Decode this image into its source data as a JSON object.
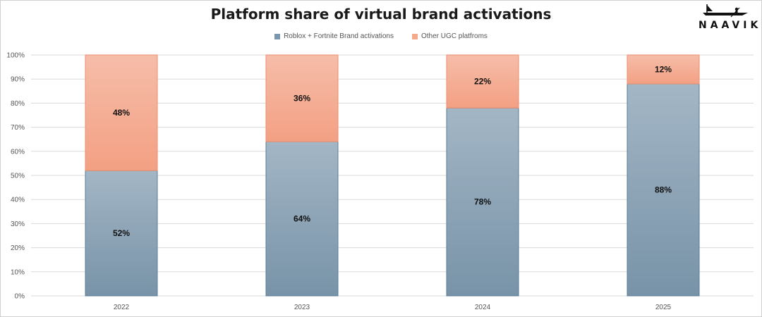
{
  "chart_data": {
    "type": "bar",
    "stacked": true,
    "title": "Platform share of virtual brand activations",
    "categories": [
      "2022",
      "2023",
      "2024",
      "2025"
    ],
    "series": [
      {
        "name": "Roblox + Fortnite Brand activations",
        "values": [
          52,
          64,
          78,
          88
        ],
        "labels": [
          "52%",
          "64%",
          "78%",
          "88%"
        ],
        "color": "#7a97ad"
      },
      {
        "name": "Other UGC platfroms",
        "values": [
          48,
          36,
          22,
          12
        ],
        "labels": [
          "48%",
          "36%",
          "22%",
          "12%"
        ],
        "color": "#f4a88c"
      }
    ],
    "yticks": [
      "0%",
      "10%",
      "20%",
      "30%",
      "40%",
      "50%",
      "60%",
      "70%",
      "80%",
      "90%",
      "100%"
    ],
    "ylim": [
      0,
      100
    ],
    "grid": true,
    "legend_position": "top"
  },
  "logo": {
    "text": "NAAVIK",
    "icon": "boat-icon"
  }
}
